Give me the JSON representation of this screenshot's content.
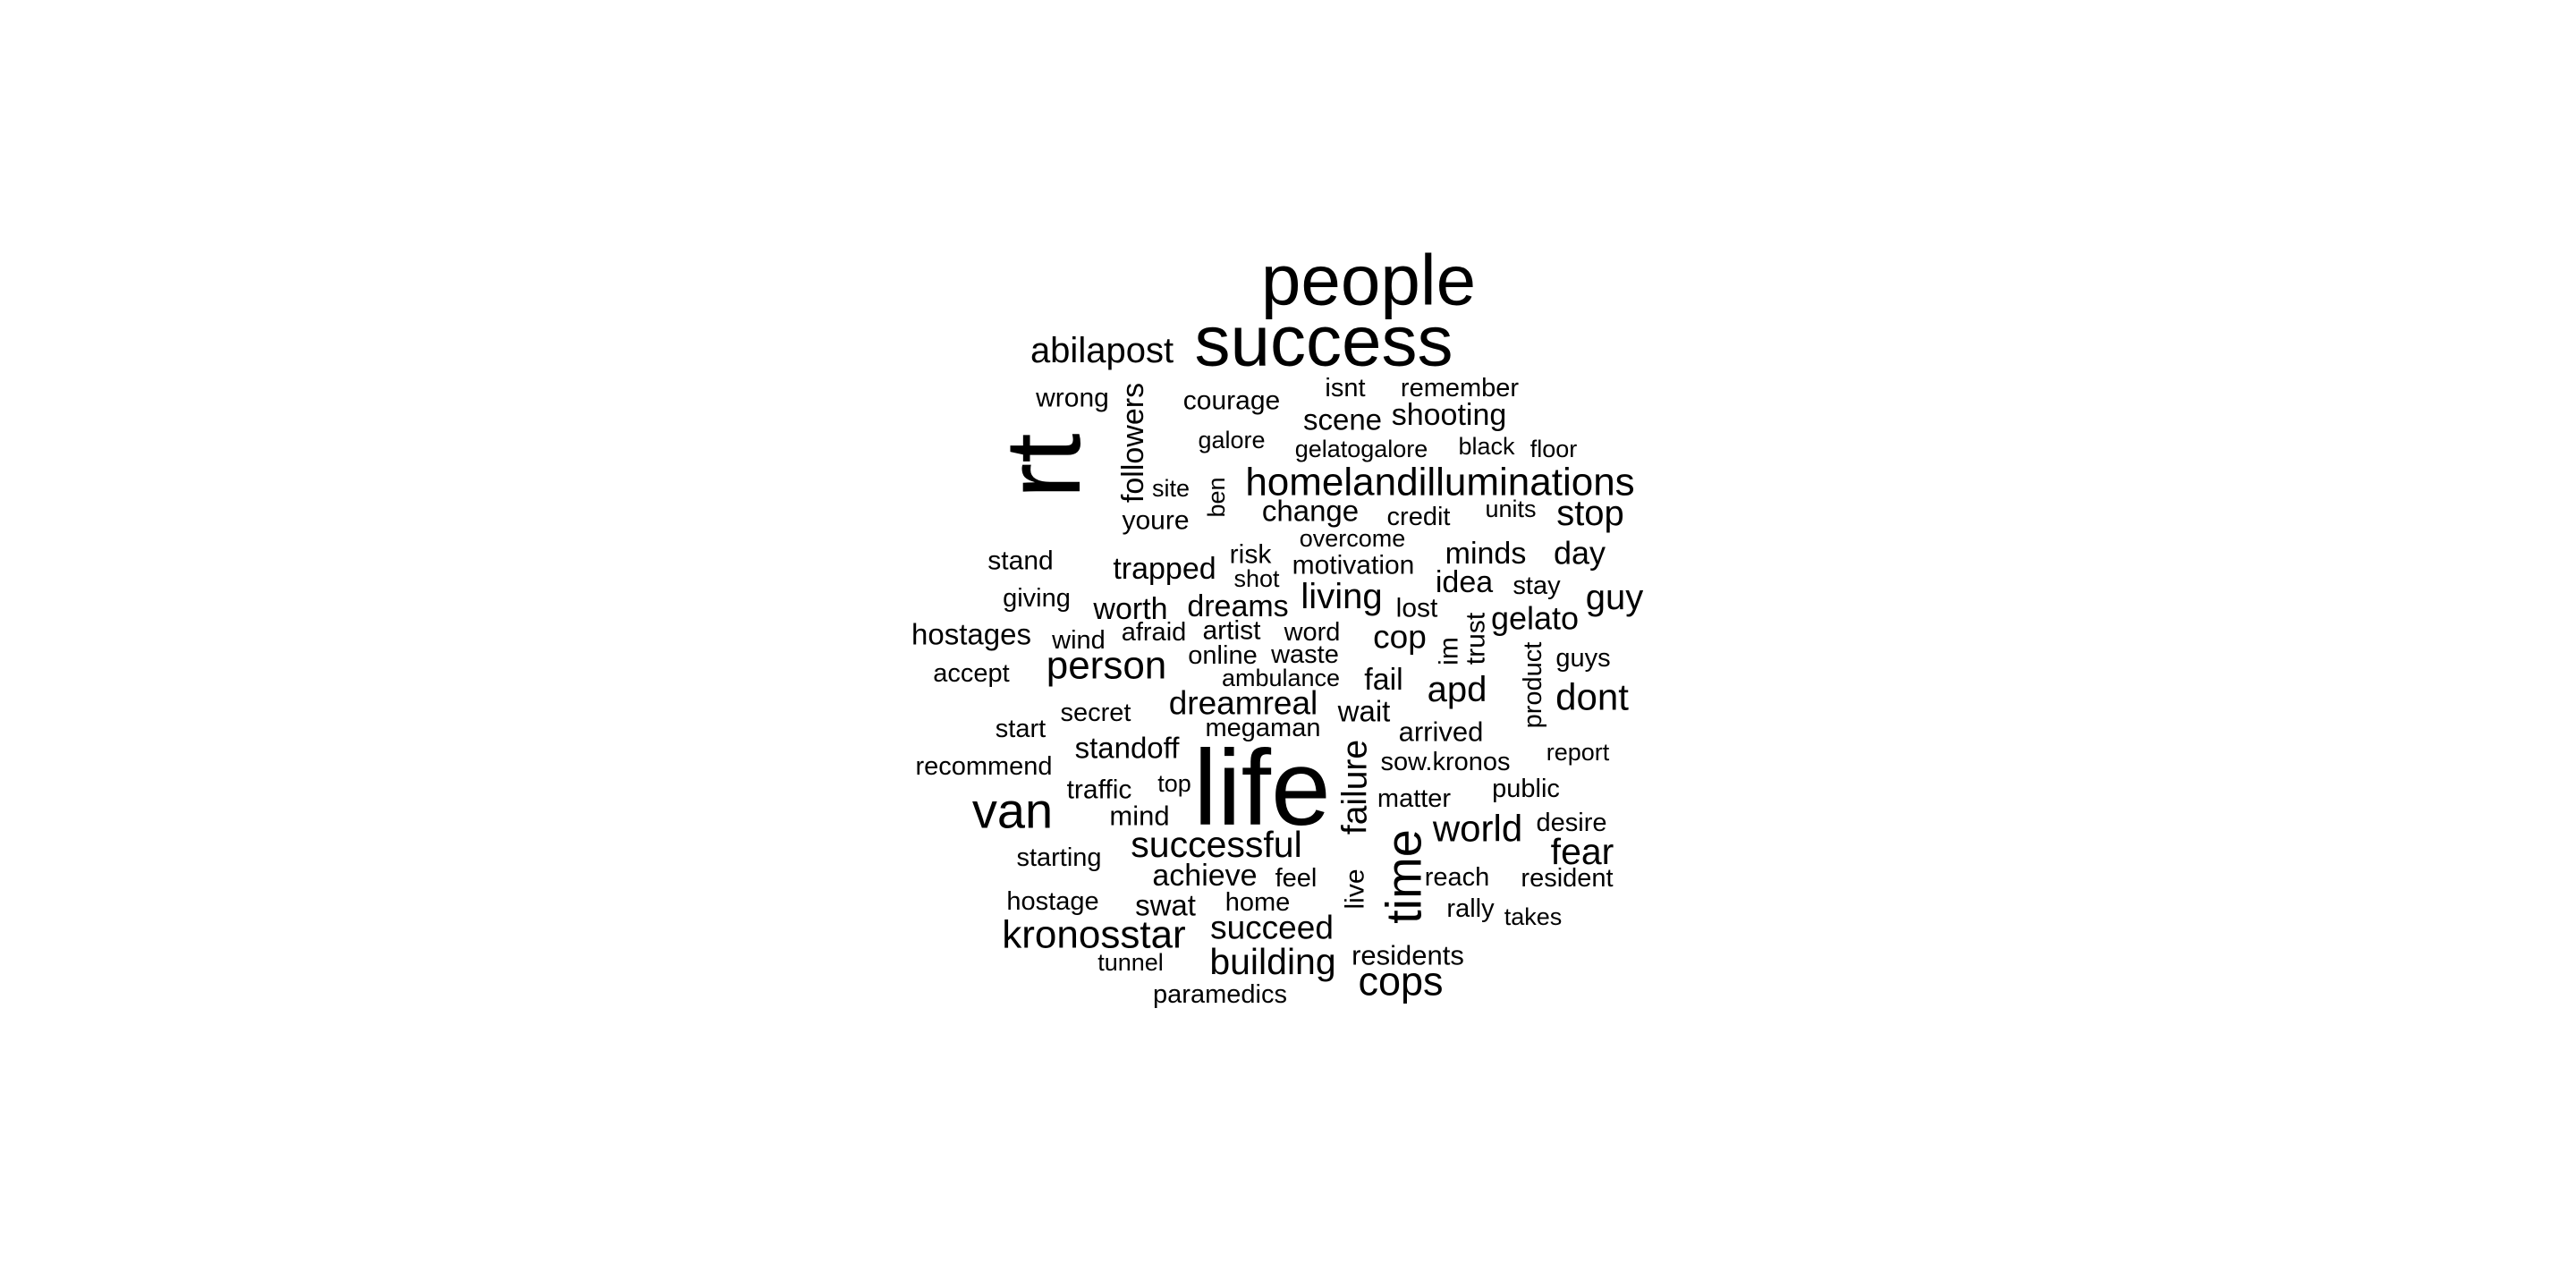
{
  "words": [
    {
      "text": "people",
      "w": 80
    },
    {
      "text": "success",
      "w": 80
    },
    {
      "text": "abilapost",
      "w": 40
    },
    {
      "text": "rt",
      "w": 120
    },
    {
      "text": "wrong",
      "w": 30
    },
    {
      "text": "followers",
      "w": 34
    },
    {
      "text": "courage",
      "w": 30
    },
    {
      "text": "isnt",
      "w": 29
    },
    {
      "text": "remember",
      "w": 29
    },
    {
      "text": "scene",
      "w": 33
    },
    {
      "text": "shooting",
      "w": 34
    },
    {
      "text": "galore",
      "w": 27
    },
    {
      "text": "gelatogalore",
      "w": 27
    },
    {
      "text": "black",
      "w": 27
    },
    {
      "text": "floor",
      "w": 27
    },
    {
      "text": "homelandilluminations",
      "w": 44
    },
    {
      "text": "site",
      "w": 27
    },
    {
      "text": "ben",
      "w": 27
    },
    {
      "text": "change",
      "w": 33
    },
    {
      "text": "credit",
      "w": 29
    },
    {
      "text": "units",
      "w": 27
    },
    {
      "text": "stop",
      "w": 40
    },
    {
      "text": "youre",
      "w": 30
    },
    {
      "text": "overcome",
      "w": 27
    },
    {
      "text": "stand",
      "w": 30
    },
    {
      "text": "trapped",
      "w": 34
    },
    {
      "text": "risk",
      "w": 30
    },
    {
      "text": "motivation",
      "w": 30
    },
    {
      "text": "minds",
      "w": 34
    },
    {
      "text": "day",
      "w": 36
    },
    {
      "text": "shot",
      "w": 27
    },
    {
      "text": "giving",
      "w": 29
    },
    {
      "text": "worth",
      "w": 34
    },
    {
      "text": "dreams",
      "w": 34
    },
    {
      "text": "living",
      "w": 40
    },
    {
      "text": "lost",
      "w": 30
    },
    {
      "text": "idea",
      "w": 34
    },
    {
      "text": "stay",
      "w": 29
    },
    {
      "text": "guy",
      "w": 40
    },
    {
      "text": "hostages",
      "w": 33
    },
    {
      "text": "wind",
      "w": 29
    },
    {
      "text": "afraid",
      "w": 29
    },
    {
      "text": "artist",
      "w": 30
    },
    {
      "text": "word",
      "w": 29
    },
    {
      "text": "cop",
      "w": 37
    },
    {
      "text": "im",
      "w": 30
    },
    {
      "text": "trust",
      "w": 30
    },
    {
      "text": "gelato",
      "w": 36
    },
    {
      "text": "accept",
      "w": 29
    },
    {
      "text": "person",
      "w": 44
    },
    {
      "text": "online",
      "w": 29
    },
    {
      "text": "waste",
      "w": 29
    },
    {
      "text": "product",
      "w": 29
    },
    {
      "text": "guys",
      "w": 29
    },
    {
      "text": "ambulance",
      "w": 27
    },
    {
      "text": "fail",
      "w": 34
    },
    {
      "text": "apd",
      "w": 40
    },
    {
      "text": "dont",
      "w": 42
    },
    {
      "text": "secret",
      "w": 29
    },
    {
      "text": "dreamreal",
      "w": 37
    },
    {
      "text": "wait",
      "w": 33
    },
    {
      "text": "start",
      "w": 29
    },
    {
      "text": "megaman",
      "w": 29
    },
    {
      "text": "arrived",
      "w": 31
    },
    {
      "text": "standoff",
      "w": 33
    },
    {
      "text": "failure",
      "w": 39
    },
    {
      "text": "report",
      "w": 27
    },
    {
      "text": "recommend",
      "w": 29
    },
    {
      "text": "sow.kronos",
      "w": 29
    },
    {
      "text": "life",
      "w": 120
    },
    {
      "text": "traffic",
      "w": 30
    },
    {
      "text": "top",
      "w": 27
    },
    {
      "text": "public",
      "w": 29
    },
    {
      "text": "van",
      "w": 56
    },
    {
      "text": "matter",
      "w": 29
    },
    {
      "text": "mind",
      "w": 31
    },
    {
      "text": "world",
      "w": 42
    },
    {
      "text": "desire",
      "w": 29
    },
    {
      "text": "successful",
      "w": 41
    },
    {
      "text": "time",
      "w": 56
    },
    {
      "text": "starting",
      "w": 29
    },
    {
      "text": "fear",
      "w": 41
    },
    {
      "text": "achieve",
      "w": 34
    },
    {
      "text": "feel",
      "w": 29
    },
    {
      "text": "reach",
      "w": 29
    },
    {
      "text": "resident",
      "w": 29
    },
    {
      "text": "live",
      "w": 30
    },
    {
      "text": "hostage",
      "w": 29
    },
    {
      "text": "swat",
      "w": 33
    },
    {
      "text": "home",
      "w": 29
    },
    {
      "text": "rally",
      "w": 29
    },
    {
      "text": "takes",
      "w": 27
    },
    {
      "text": "kronosstar",
      "w": 44
    },
    {
      "text": "succeed",
      "w": 37
    },
    {
      "text": "tunnel",
      "w": 27
    },
    {
      "text": "building",
      "w": 41
    },
    {
      "text": "residents",
      "w": 31
    },
    {
      "text": "cops",
      "w": 45
    },
    {
      "text": "paramedics",
      "w": 29
    }
  ]
}
